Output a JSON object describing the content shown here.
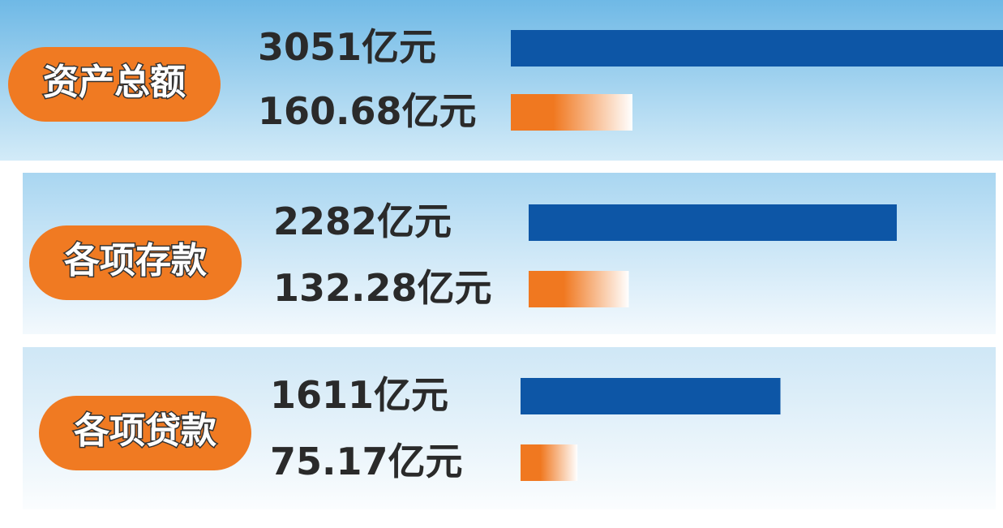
{
  "chart_data": {
    "type": "bar",
    "categories": [
      "资产总额",
      "各项存款",
      "各项贷款"
    ],
    "series": [
      {
        "color": "#0d56a6",
        "values": [
          3051,
          2282,
          1611
        ],
        "value_labels": [
          "3051亿元",
          "2282亿元",
          "1611亿元"
        ]
      },
      {
        "color": "#f07820",
        "values": [
          160.68,
          132.28,
          75.17
        ],
        "value_labels": [
          "160.68亿元",
          "132.28亿元",
          "75.17亿元"
        ]
      }
    ]
  }
}
